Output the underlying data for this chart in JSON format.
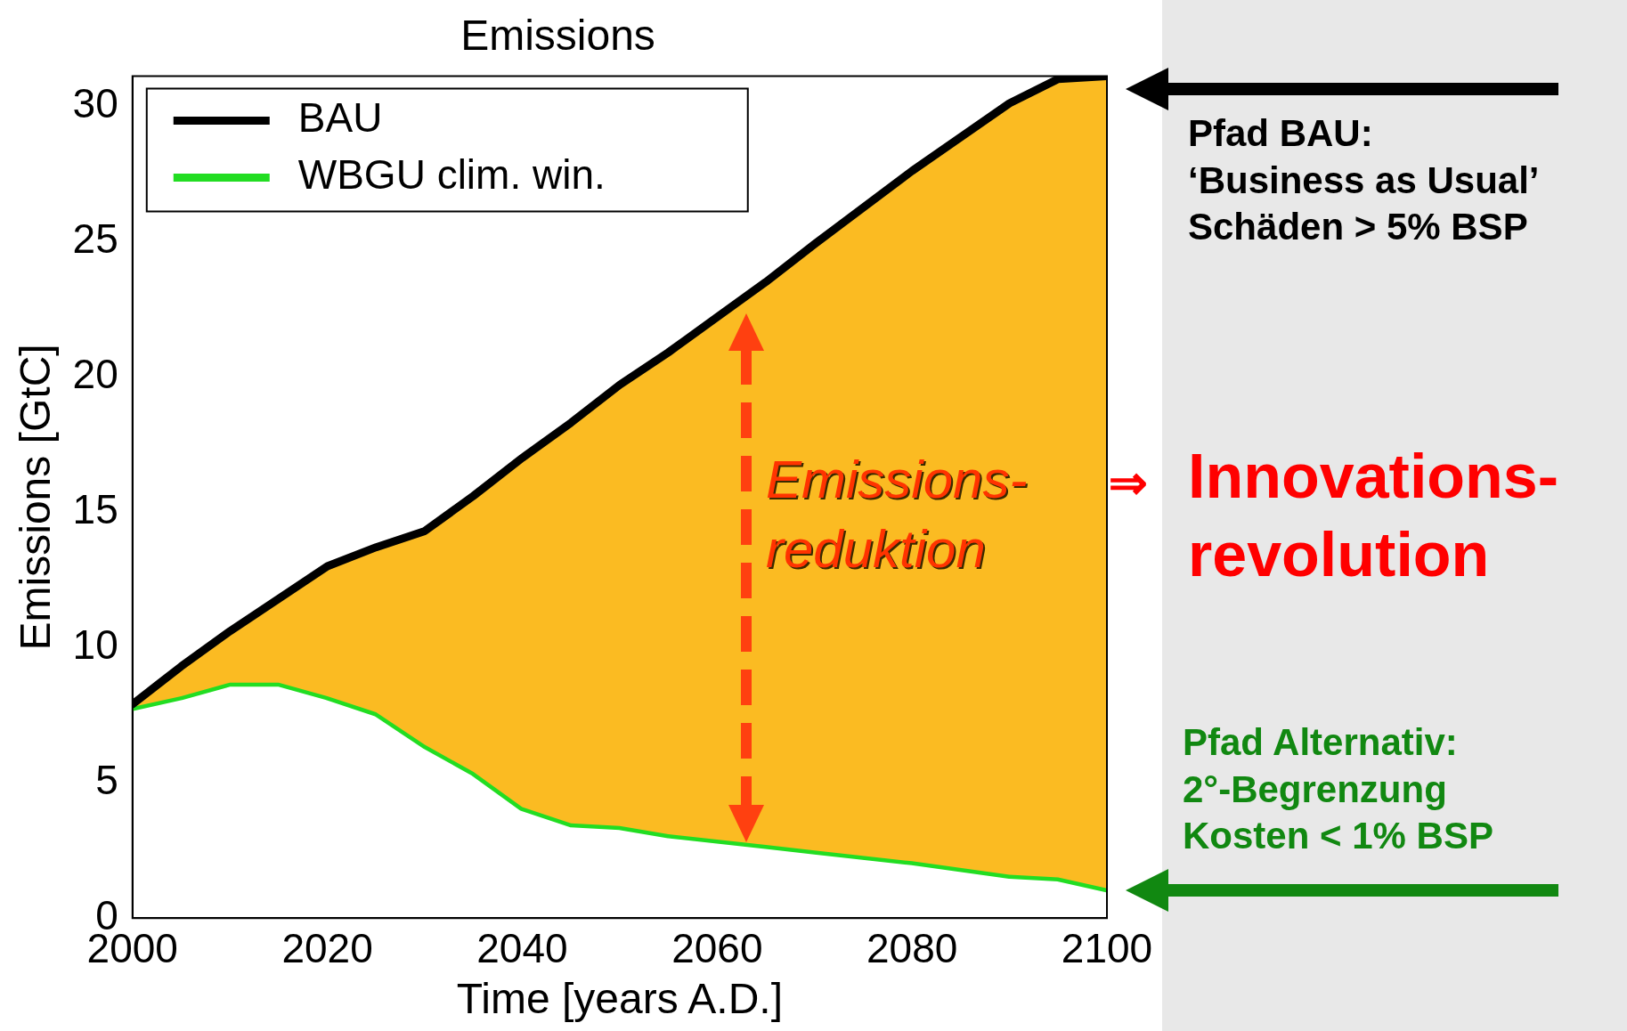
{
  "chart_data": {
    "type": "line",
    "title": "Emissions",
    "xlabel": "Time [years A.D.]",
    "ylabel": "Emissions [GtC]",
    "x": [
      2000,
      2005,
      2010,
      2015,
      2020,
      2025,
      2030,
      2035,
      2040,
      2045,
      2050,
      2055,
      2060,
      2065,
      2070,
      2080,
      2090,
      2095,
      2100
    ],
    "xlim": [
      2000,
      2100
    ],
    "xticks": [
      2000,
      2020,
      2040,
      2060,
      2080,
      2100
    ],
    "ylim": [
      0,
      31.1
    ],
    "yticks": [
      0,
      5,
      10,
      15,
      20,
      25,
      30
    ],
    "grid": false,
    "legend": "top left",
    "marker": "none",
    "line_style": "solid",
    "series": [
      {
        "name": "BAU",
        "type": "area",
        "color": "#000000",
        "colors": [
          "#fbbb22",
          "#fbbb22",
          "#fbbb22",
          "#fbbb22",
          "#fbbb22",
          "#fbbb22",
          "#fbbb22",
          "#fbbb22",
          "#fbbb22",
          "#fbbb22",
          "#fbbb22",
          "#fbbb22",
          "#fbbb22",
          "#fbbb22",
          "#fbbb22",
          "#fbbb22",
          "#fbbb22",
          "#fbbb22",
          "#fbbb22"
        ],
        "values": [
          7.9,
          9.3,
          10.6,
          11.8,
          13.0,
          13.7,
          14.3,
          15.6,
          17.0,
          18.3,
          19.7,
          20.9,
          22.2,
          23.5,
          24.9,
          27.6,
          30.1,
          31.0,
          31.1
        ]
      },
      {
        "name": "WBGU clim. win.",
        "type": "line",
        "color": "#22dd22",
        "values": [
          7.8,
          8.2,
          8.7,
          8.7,
          8.2,
          7.6,
          6.4,
          5.4,
          4.1,
          3.5,
          3.4,
          3.1,
          2.9,
          2.7,
          2.5,
          2.1,
          1.6,
          1.5,
          1.1
        ]
      }
    ],
    "annotations": [
      "Emissions-\nreduktion",
      "⇒",
      "Innovations-\nrevolution",
      "Pfad BAU:\n‘Business as Usual’\nSchäden > 5% BSP",
      "Pfad Alternativ:\n2°-Begrenzung\nKosten < 1% BSP"
    ]
  }
}
